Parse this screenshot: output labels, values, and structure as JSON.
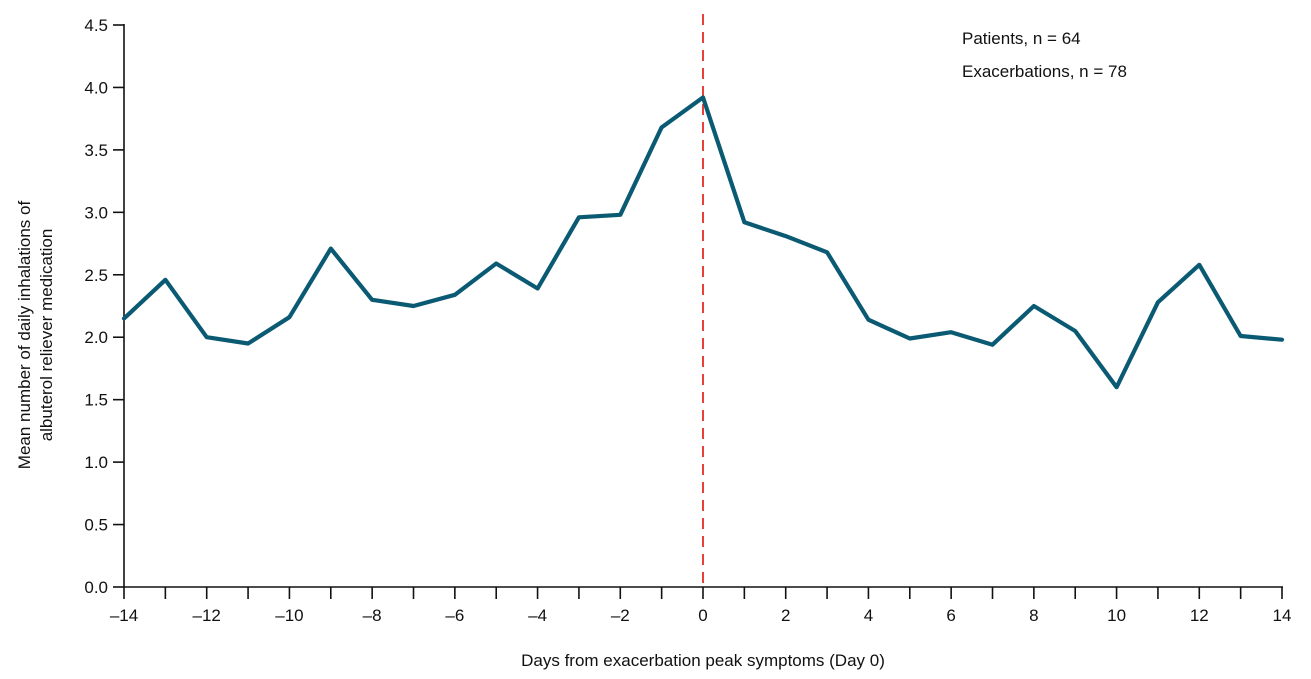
{
  "chart_data": {
    "type": "line",
    "xlabel": "Days from exacerbation peak symptoms (Day 0)",
    "ylabel_lines": [
      "Mean number of daily inhalations of",
      "albuterol reliever medication"
    ],
    "x_ticks": [
      -14,
      -13,
      -12,
      -11,
      -10,
      -9,
      -8,
      -7,
      -6,
      -5,
      -4,
      -3,
      -2,
      -1,
      0,
      1,
      2,
      3,
      4,
      5,
      6,
      7,
      8,
      9,
      10,
      11,
      12,
      13,
      14
    ],
    "x_tick_labels": [
      "–14",
      "–12",
      "–10",
      "–8",
      "–6",
      "–4",
      "–2",
      "0",
      "2",
      "4",
      "6",
      "8",
      "10",
      "12",
      "14"
    ],
    "x_tick_label_values": [
      -14,
      -12,
      -10,
      -8,
      -6,
      -4,
      -2,
      0,
      2,
      4,
      6,
      8,
      10,
      12,
      14
    ],
    "y_ticks": [
      0.0,
      0.5,
      1.0,
      1.5,
      2.0,
      2.5,
      3.0,
      3.5,
      4.0,
      4.5
    ],
    "y_tick_labels": [
      "0.0",
      "0.5",
      "1.0",
      "1.5",
      "2.0",
      "2.5",
      "3.0",
      "3.5",
      "4.0",
      "4.5"
    ],
    "xlim": [
      -14,
      14
    ],
    "ylim": [
      0,
      4.5
    ],
    "grid": false,
    "legend": "none",
    "x": [
      -14,
      -13,
      -12,
      -11,
      -10,
      -9,
      -8,
      -7,
      -6,
      -5,
      -4,
      -3,
      -2,
      -1,
      0,
      1,
      2,
      3,
      4,
      5,
      6,
      7,
      8,
      9,
      10,
      11,
      12,
      13,
      14
    ],
    "series": [
      {
        "values": [
          2.15,
          2.46,
          2.0,
          1.95,
          2.16,
          2.71,
          2.3,
          2.25,
          2.34,
          2.59,
          2.39,
          2.96,
          2.98,
          3.68,
          3.92,
          2.92,
          2.81,
          2.68,
          2.14,
          1.99,
          2.04,
          1.94,
          2.25,
          2.05,
          1.6,
          2.28,
          2.58,
          2.01,
          1.98
        ],
        "color": "#0b5a73"
      }
    ],
    "reference_line": {
      "x": 0,
      "color": "#e8413a",
      "style": "dashed"
    },
    "annotations": [
      "Patients, n = 64",
      "Exacerbations, n = 78"
    ]
  }
}
